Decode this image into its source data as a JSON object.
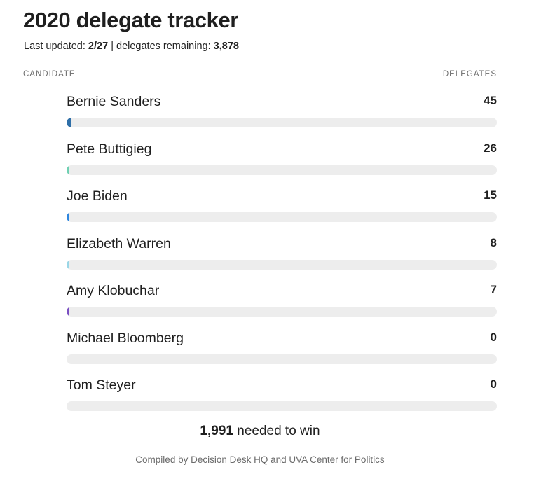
{
  "header": {
    "title": "2020 delegate tracker",
    "last_updated_label": "Last updated:",
    "last_updated_value": "2/27",
    "separator": "|",
    "remaining_label": "delegates remaining:",
    "remaining_value": "3,878"
  },
  "columns": {
    "candidate": "CANDIDATE",
    "delegates": "DELEGATES"
  },
  "chart_data": {
    "type": "bar",
    "orientation": "horizontal",
    "categories": [
      "Bernie Sanders",
      "Pete Buttigieg",
      "Joe Biden",
      "Elizabeth Warren",
      "Amy Klobuchar",
      "Michael Bloomberg",
      "Tom Steyer"
    ],
    "values": [
      45,
      26,
      15,
      8,
      7,
      0,
      0
    ],
    "colors": [
      "#2f6fa8",
      "#6fd0b2",
      "#2e86de",
      "#9ad6e6",
      "#7a4fc2",
      "#8ec7f0",
      "#45c48a"
    ],
    "xlim": [
      0,
      3979
    ],
    "reference_value": 1991,
    "grid": false,
    "legend": "none"
  },
  "avatar_colors": [
    "#4a8fd6",
    "#6fd0b2",
    "#2e86de",
    "#bfe8f2",
    "#5a2e9c",
    "#8ec7f0",
    "#26c08a"
  ],
  "footer": {
    "needed_value": "1,991",
    "needed_label": "needed to win",
    "credit": "Compiled by Decision Desk HQ and UVA Center for Politics"
  }
}
